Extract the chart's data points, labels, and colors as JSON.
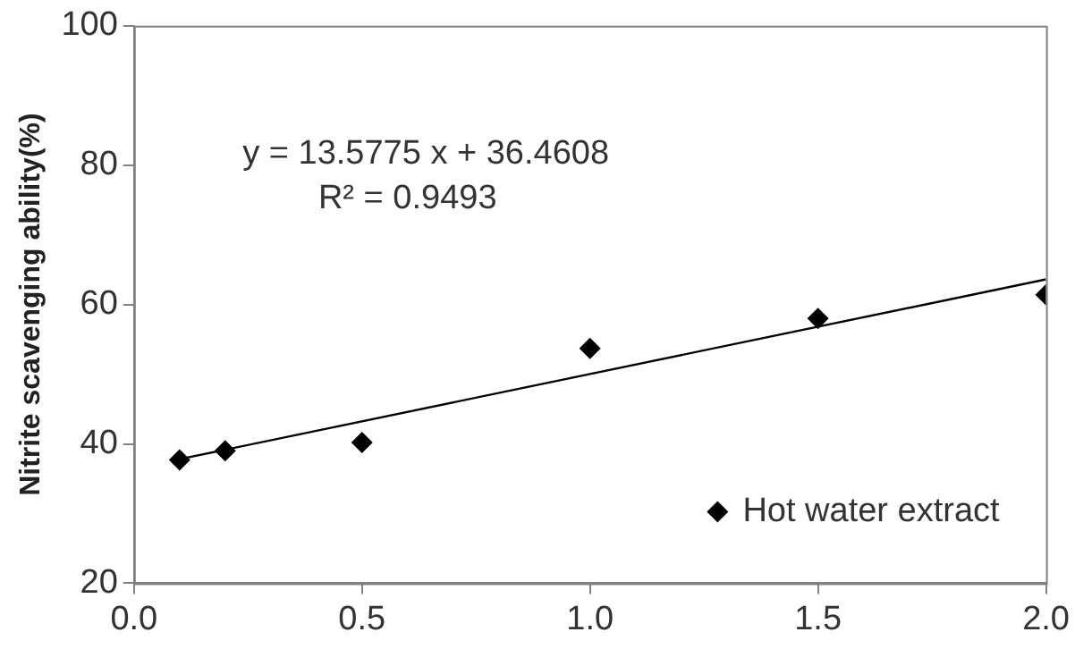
{
  "chart_data": {
    "type": "scatter",
    "ylabel": "Nitrite scavenging ability(%)",
    "xlim": [
      0,
      2
    ],
    "xticks": [
      {
        "value": 0,
        "label": "0.0"
      },
      {
        "value": 0.5,
        "label": "0.5"
      },
      {
        "value": 1,
        "label": "1.0"
      },
      {
        "value": 1.5,
        "label": "1.5"
      },
      {
        "value": 2,
        "label": "2.0"
      }
    ],
    "ylim": [
      20,
      100
    ],
    "yticks": [
      20,
      40,
      60,
      80,
      100
    ],
    "grid": false,
    "legend": "bottom right",
    "marker": "diamond",
    "annotations": [
      "y = 13.5775 x + 36.4608",
      "R² = 0.9493"
    ],
    "series": [
      {
        "name": "Hot water extract",
        "color": "#000000",
        "x": [
          0.1,
          0.2,
          0.5,
          1.0,
          1.5,
          2.0
        ],
        "values": [
          37.7,
          39.0,
          40.2,
          53.7,
          58.0,
          61.4
        ]
      },
      {
        "type": "line",
        "color": "#000000",
        "x": [
          0.1,
          2.0
        ],
        "values": [
          37.8,
          63.6
        ],
        "marker": "none",
        "line_style": "solid"
      }
    ]
  }
}
